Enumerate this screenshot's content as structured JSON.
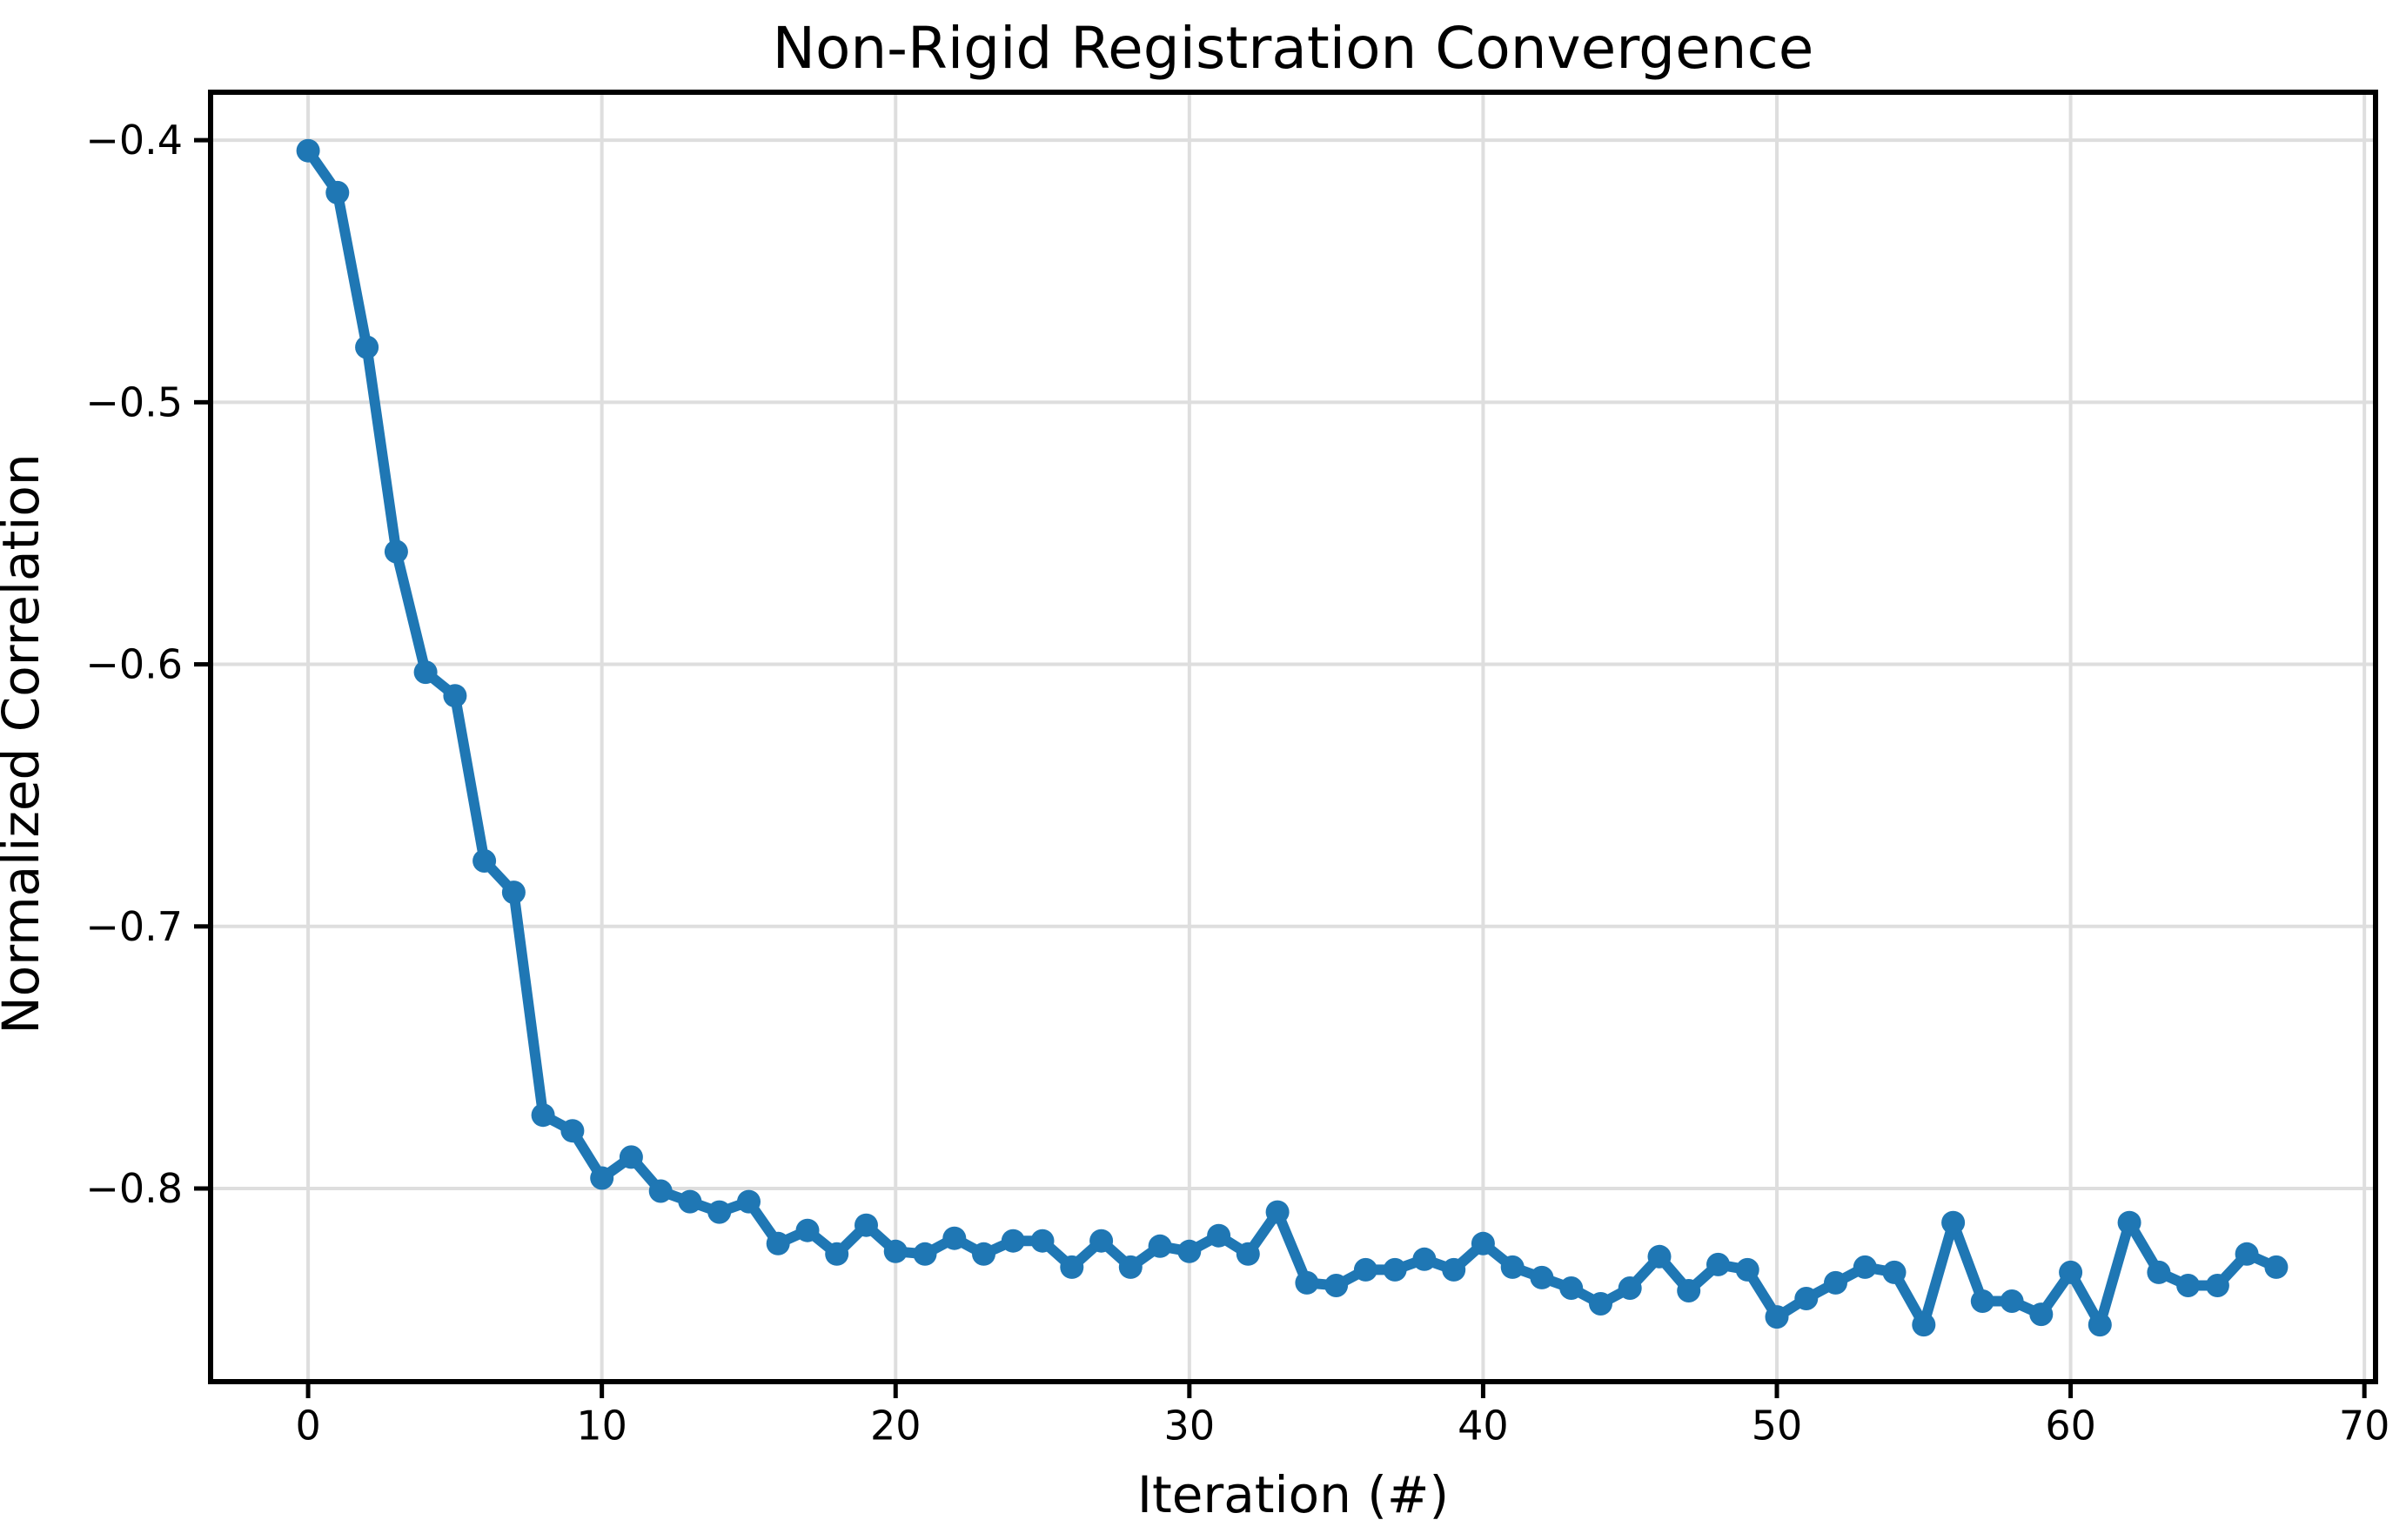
{
  "chart": {
    "title": "Non-Rigid Registration Convergence",
    "xlabel": "Iteration (#)",
    "ylabel": "Normalized Correlation"
  },
  "chart_data": {
    "type": "line",
    "title": "Non-Rigid Registration Convergence",
    "xlabel": "Iteration (#)",
    "ylabel": "Normalized Correlation",
    "legend": null,
    "grid": true,
    "x": [
      0,
      1,
      2,
      3,
      4,
      5,
      6,
      7,
      8,
      9,
      10,
      11,
      12,
      13,
      14,
      15,
      16,
      17,
      18,
      19,
      20,
      21,
      22,
      23,
      24,
      25,
      26,
      27,
      28,
      29,
      30,
      31,
      32,
      33,
      34,
      35,
      36,
      37,
      38,
      39,
      40,
      41,
      42,
      43,
      44,
      45,
      46,
      47,
      48,
      49,
      50,
      51,
      52,
      53,
      54,
      55,
      56,
      57,
      58,
      59,
      60,
      61,
      62,
      63,
      64,
      65,
      66,
      67
    ],
    "y": [
      -0.404,
      -0.42,
      -0.479,
      -0.557,
      -0.603,
      -0.612,
      -0.675,
      -0.687,
      -0.772,
      -0.778,
      -0.796,
      -0.788,
      -0.801,
      -0.805,
      -0.809,
      -0.805,
      -0.821,
      -0.816,
      -0.825,
      -0.814,
      -0.824,
      -0.825,
      -0.819,
      -0.825,
      -0.82,
      -0.82,
      -0.83,
      -0.82,
      -0.83,
      -0.822,
      -0.824,
      -0.818,
      -0.825,
      -0.809,
      -0.836,
      -0.837,
      -0.831,
      -0.831,
      -0.827,
      -0.831,
      -0.821,
      -0.83,
      -0.834,
      -0.838,
      -0.844,
      -0.838,
      -0.826,
      -0.839,
      -0.829,
      -0.831,
      -0.849,
      -0.842,
      -0.836,
      -0.83,
      -0.832,
      -0.852,
      -0.813,
      -0.843,
      -0.843,
      -0.848,
      -0.832,
      -0.852,
      -0.813,
      -0.832,
      -0.837,
      -0.837,
      -0.825,
      -0.83
    ],
    "xlim": [
      -3.32,
      70.38
    ],
    "ylim": [
      -0.8737,
      -0.3817
    ],
    "xticks": [
      0,
      10,
      20,
      30,
      40,
      50,
      60,
      70
    ],
    "xtick_labels": [
      "0",
      "10",
      "20",
      "30",
      "40",
      "50",
      "60",
      "70"
    ],
    "yticks": [
      -0.4,
      -0.5,
      -0.6,
      -0.7,
      -0.8
    ],
    "ytick_labels": [
      "−0.4",
      "−0.5",
      "−0.6",
      "−0.7",
      "−0.8"
    ],
    "colors": {
      "line": "#1f77b4",
      "marker": "#1f77b4",
      "grid": "#dedede",
      "spine": "#000000",
      "background": "#ffffff"
    }
  }
}
